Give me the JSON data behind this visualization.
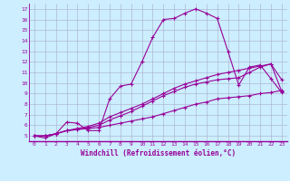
{
  "xlabel": "Windchill (Refroidissement éolien,°C)",
  "bg_color": "#cceeff",
  "grid_color": "#aaaacc",
  "line_color": "#990099",
  "line_width": 0.8,
  "marker": "+",
  "marker_size": 3,
  "xlim": [
    -0.5,
    23.5
  ],
  "ylim": [
    4.5,
    17.5
  ],
  "xticks": [
    0,
    1,
    2,
    3,
    4,
    5,
    6,
    7,
    8,
    9,
    10,
    11,
    12,
    13,
    14,
    15,
    16,
    17,
    18,
    19,
    20,
    21,
    22,
    23
  ],
  "yticks": [
    5,
    6,
    7,
    8,
    9,
    10,
    11,
    12,
    13,
    14,
    15,
    16,
    17
  ],
  "lines": [
    [
      5.0,
      4.8,
      5.2,
      6.3,
      6.2,
      5.5,
      5.5,
      8.5,
      9.7,
      9.9,
      12.0,
      14.3,
      16.0,
      16.1,
      16.6,
      17.0,
      16.6,
      16.1,
      13.0,
      9.8,
      11.5,
      11.7,
      10.4,
      9.1
    ],
    [
      5.0,
      5.0,
      5.2,
      5.5,
      5.6,
      5.7,
      5.8,
      6.0,
      6.2,
      6.4,
      6.6,
      6.8,
      7.1,
      7.4,
      7.7,
      8.0,
      8.2,
      8.5,
      8.6,
      8.7,
      8.8,
      9.0,
      9.1,
      9.3
    ],
    [
      5.0,
      5.0,
      5.2,
      5.5,
      5.6,
      5.8,
      6.0,
      6.5,
      6.9,
      7.3,
      7.8,
      8.3,
      8.8,
      9.2,
      9.6,
      9.9,
      10.1,
      10.3,
      10.4,
      10.5,
      11.0,
      11.5,
      11.8,
      10.3
    ],
    [
      5.0,
      5.0,
      5.2,
      5.5,
      5.7,
      5.9,
      6.2,
      6.8,
      7.2,
      7.6,
      8.0,
      8.5,
      9.0,
      9.5,
      9.9,
      10.2,
      10.5,
      10.8,
      11.0,
      11.2,
      11.4,
      11.6,
      11.8,
      9.2
    ]
  ]
}
